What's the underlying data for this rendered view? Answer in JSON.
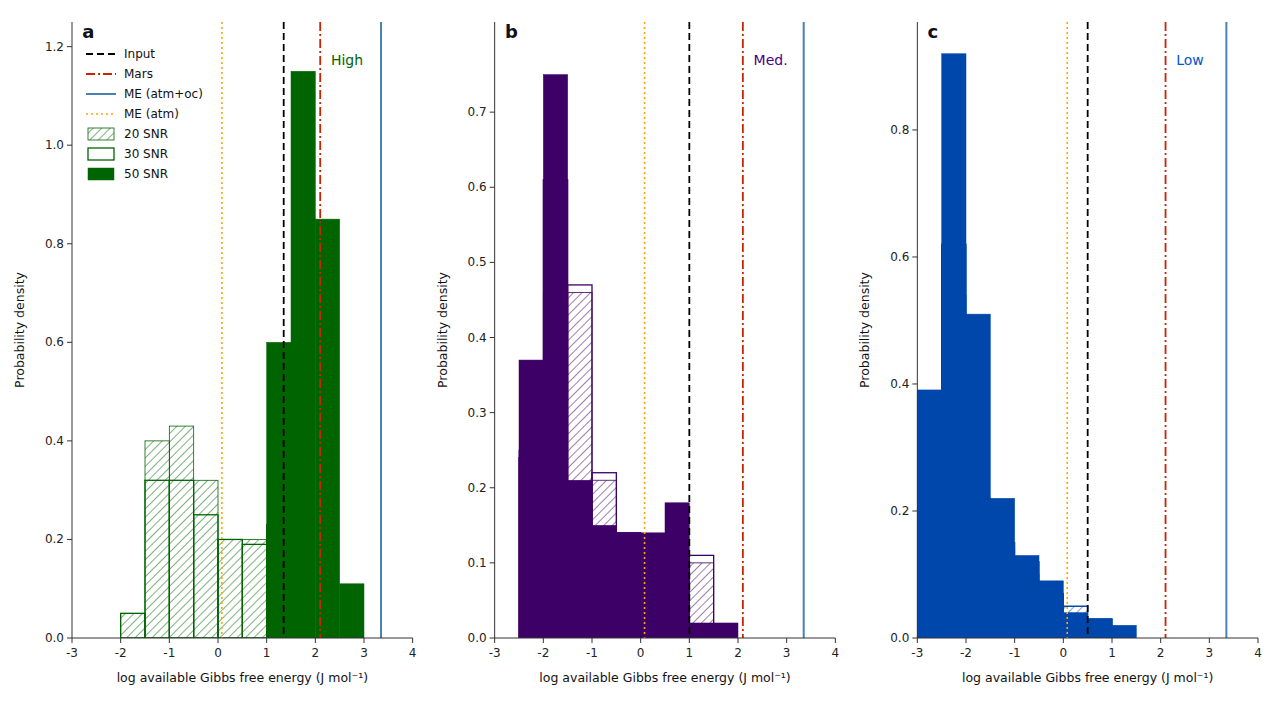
{
  "chart_data": [
    {
      "type": "histogram",
      "x_label": "log available Gibbs free energy (J mol⁻¹)",
      "y_label": "Probability density",
      "annotations": [
        {
          "text": "a"
        },
        {
          "text": "High",
          "color": "#006400"
        }
      ],
      "legend": "upper left",
      "xlim": [
        -3,
        4
      ],
      "ylim": [
        0,
        1.25
      ],
      "xticks": [
        -3,
        -2,
        -1,
        0,
        1,
        2,
        3,
        4
      ],
      "yticks": [
        {
          "value": 0.0,
          "label": "0.0"
        },
        0.2,
        0.4,
        0.6,
        0.8,
        {
          "value": 1.0,
          "label": "1.0"
        },
        1.2
      ],
      "series": [
        {
          "name": "20 SNR",
          "color": "#006400",
          "line_style": "hatched",
          "bins": [
            -2.0,
            -1.5,
            -1.0,
            -0.5,
            0.0,
            0.5,
            1.0,
            1.5,
            2.0,
            2.5
          ],
          "values": [
            0.05,
            0.4,
            0.43,
            0.32,
            0.2,
            0.2,
            0.0,
            0.0,
            0.0
          ]
        },
        {
          "name": "30 SNR",
          "color": "#006400",
          "line_style": "outline",
          "bins": [
            -2.0,
            -1.5,
            -1.0,
            -0.5,
            0.0,
            0.5,
            1.0,
            1.5,
            2.0,
            2.5
          ],
          "values": [
            0.05,
            0.32,
            0.32,
            0.25,
            0.2,
            0.19,
            0.23,
            0.0,
            0.0
          ]
        },
        {
          "name": "50 SNR",
          "color": "#006400",
          "line_style": "filled",
          "bins": [
            1.0,
            1.5,
            2.0,
            2.5,
            3.0
          ],
          "values": [
            0.6,
            1.15,
            0.85,
            0.11
          ]
        }
      ],
      "reference_lines": [
        {
          "name": "Input",
          "color": "black",
          "line_style": "dashed",
          "x": 1.35
        },
        {
          "name": "Mars",
          "color": "#CC2200",
          "line_style": "dashdot",
          "x": 2.1
        },
        {
          "name": "ME (atm+oc)",
          "color": "#4682B4",
          "line_style": "solid",
          "x": 3.35
        },
        {
          "name": "ME (atm)",
          "color": "orange",
          "line_style": "dotted",
          "x": 0.08
        }
      ]
    },
    {
      "type": "histogram",
      "x_label": "log available Gibbs free energy (J mol⁻¹)",
      "y_label": "Probability density",
      "annotations": [
        {
          "text": "b"
        },
        {
          "text": "Med.",
          "color": "#4B0082"
        }
      ],
      "xlim": [
        -3,
        4
      ],
      "ylim": [
        0,
        0.82
      ],
      "xticks": [
        -3,
        -2,
        -1,
        0,
        1,
        2,
        3,
        4
      ],
      "yticks": [
        {
          "value": 0.0,
          "label": "0.0"
        },
        0.1,
        0.2,
        0.3,
        0.4,
        0.5,
        0.6,
        0.7
      ],
      "series": [
        {
          "color": "#3D0066",
          "line_style": "hatched",
          "bins": [
            -3.0,
            -2.5,
            -2.0,
            -1.5,
            -1.0,
            -0.5,
            0.0,
            0.5,
            1.0,
            1.5,
            2.0,
            2.5
          ],
          "values": [
            0.0,
            0.25,
            0.46,
            0.46,
            0.21,
            0.14,
            0.0,
            0.0,
            0.1,
            0.0,
            0.0
          ]
        },
        {
          "color": "#3D0066",
          "line_style": "outline",
          "bins": [
            -3.0,
            -2.5,
            -2.0,
            -1.5,
            -1.0,
            -0.5,
            0.0,
            0.5,
            1.0,
            1.5,
            2.0,
            2.5
          ],
          "values": [
            0.0,
            0.24,
            0.61,
            0.47,
            0.22,
            0.14,
            0.0,
            0.0,
            0.11,
            0.0,
            0.0
          ]
        },
        {
          "color": "#3D0066",
          "line_style": "filled",
          "bins": [
            -3.0,
            -2.5,
            -2.0,
            -1.5,
            -1.0,
            -0.5,
            0.0,
            0.5,
            1.0,
            1.5,
            2.0,
            2.5
          ],
          "values": [
            0.0,
            0.37,
            0.75,
            0.21,
            0.15,
            0.14,
            0.14,
            0.18,
            0.02,
            0.02,
            0.0
          ]
        }
      ],
      "reference_lines": [
        {
          "color": "black",
          "line_style": "dashed",
          "x": 1.0
        },
        {
          "color": "#CC2200",
          "line_style": "dashdot",
          "x": 2.1
        },
        {
          "color": "#4682B4",
          "line_style": "solid",
          "x": 3.35
        },
        {
          "color": "orange",
          "line_style": "dotted",
          "x": 0.08
        }
      ]
    },
    {
      "type": "histogram",
      "x_label": "log available Gibbs free energy (J mol⁻¹)",
      "y_label": "Probability density",
      "annotations": [
        {
          "text": "c"
        },
        {
          "text": "Low",
          "color": "#0055CC"
        }
      ],
      "xlim": [
        -3,
        4
      ],
      "ylim": [
        0,
        0.97
      ],
      "xticks": [
        -3,
        -2,
        -1,
        0,
        1,
        2,
        3,
        4
      ],
      "yticks": [
        {
          "value": 0.0,
          "label": "0.0"
        },
        0.2,
        0.4,
        0.6,
        0.8
      ],
      "series": [
        {
          "color": "#0047AB",
          "line_style": "hatched",
          "bins": [
            -3.0,
            -2.5,
            -2.0,
            -1.5,
            -1.0,
            -0.5,
            0.0,
            0.5,
            1.0,
            1.5,
            2.0,
            2.5
          ],
          "values": [
            0.39,
            0.54,
            0.22,
            0.14,
            0.1,
            0.07,
            0.05,
            0.03,
            0.0,
            0.0,
            0.0
          ]
        },
        {
          "color": "#0047AB",
          "line_style": "outline",
          "bins": [
            -3.0,
            -2.5,
            -2.0,
            -1.5,
            -1.0,
            -0.5,
            0.0,
            0.5,
            1.0,
            1.5,
            2.0,
            2.5
          ],
          "values": [
            0.39,
            0.62,
            0.22,
            0.15,
            0.12,
            0.07,
            0.05,
            0.03,
            0.0,
            0.0,
            0.0
          ]
        },
        {
          "color": "#0047AB",
          "line_style": "filled",
          "bins": [
            -3.0,
            -2.5,
            -2.0,
            -1.5,
            -1.0,
            -0.5,
            0.0,
            0.5,
            1.0,
            1.5,
            2.0,
            2.5
          ],
          "values": [
            0.39,
            0.92,
            0.51,
            0.22,
            0.13,
            0.09,
            0.04,
            0.03,
            0.02,
            0.0,
            0.0
          ]
        }
      ],
      "reference_lines": [
        {
          "color": "black",
          "line_style": "dashed",
          "x": 0.5
        },
        {
          "color": "#CC2200",
          "line_style": "dashdot",
          "x": 2.1
        },
        {
          "color": "#4682B4",
          "line_style": "solid",
          "x": 3.35
        },
        {
          "color": "orange",
          "line_style": "dotted",
          "x": 0.08
        }
      ]
    }
  ]
}
